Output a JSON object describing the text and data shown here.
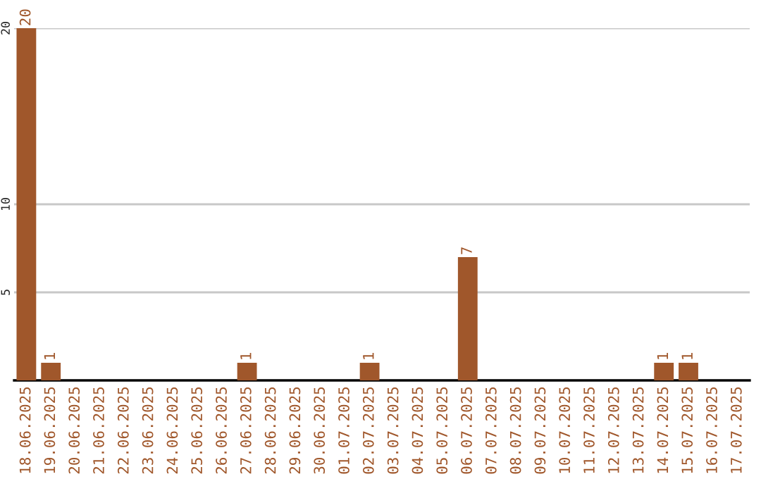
{
  "chart_data": {
    "type": "bar",
    "categories": [
      "18.06.2025",
      "19.06.2025",
      "20.06.2025",
      "21.06.2025",
      "22.06.2025",
      "23.06.2025",
      "24.06.2025",
      "25.06.2025",
      "26.06.2025",
      "27.06.2025",
      "28.06.2025",
      "29.06.2025",
      "30.06.2025",
      "01.07.2025",
      "02.07.2025",
      "03.07.2025",
      "04.07.2025",
      "05.07.2025",
      "06.07.2025",
      "07.07.2025",
      "08.07.2025",
      "09.07.2025",
      "10.07.2025",
      "11.07.2025",
      "12.07.2025",
      "13.07.2025",
      "14.07.2025",
      "15.07.2025",
      "16.07.2025",
      "17.07.2025"
    ],
    "values": [
      20,
      1,
      0,
      0,
      0,
      0,
      0,
      0,
      0,
      1,
      0,
      0,
      0,
      0,
      1,
      0,
      0,
      0,
      7,
      0,
      0,
      0,
      0,
      0,
      0,
      0,
      1,
      1,
      0,
      0
    ],
    "value_labels": [
      "20",
      "1",
      null,
      null,
      null,
      null,
      null,
      null,
      null,
      "1",
      null,
      null,
      null,
      null,
      "1",
      null,
      null,
      null,
      "7",
      null,
      null,
      null,
      null,
      null,
      null,
      null,
      "1",
      "1",
      null,
      null
    ],
    "color": "#a0572b",
    "ylim": [
      0,
      20
    ],
    "yticks": [
      5,
      10,
      20
    ],
    "grid": "y",
    "legend": false
  }
}
